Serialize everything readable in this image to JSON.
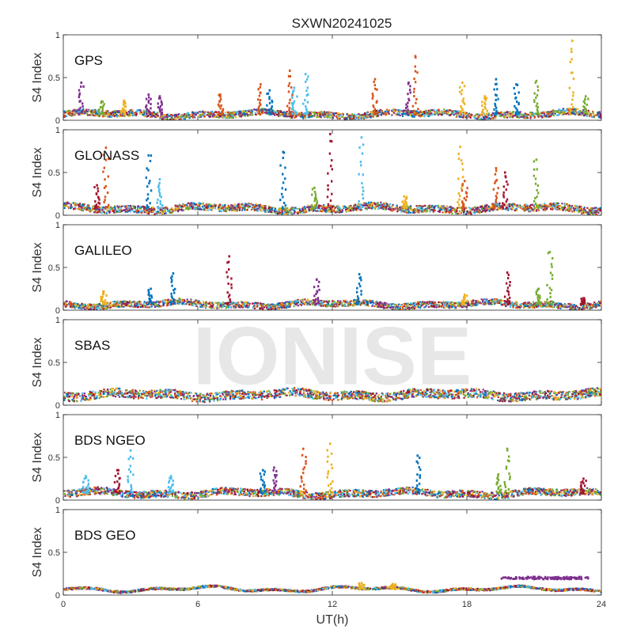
{
  "title": "SXWN20241025",
  "watermark": "IONISE",
  "x_axis": {
    "label": "UT(h)",
    "ticks": [
      "0",
      "6",
      "12",
      "18",
      "24"
    ],
    "range": [
      0,
      24
    ]
  },
  "y_axis": {
    "label": "S4 Index",
    "ticks": [
      "0",
      "0.5",
      "1"
    ],
    "range": [
      0,
      1
    ]
  },
  "palette": [
    "#0072BD",
    "#D95319",
    "#EDB120",
    "#7E2F8E",
    "#77AC30",
    "#4DBEEE",
    "#A2142F"
  ],
  "chart_data": [
    {
      "type": "scatter",
      "panel": "GPS",
      "ylim": [
        0,
        1
      ],
      "xlim": [
        0,
        24
      ],
      "baseline": {
        "level": 0.07,
        "noise": 0.035
      },
      "spikes": [
        {
          "x": 0.8,
          "peak": 0.44,
          "color": "#7E2F8E"
        },
        {
          "x": 1.7,
          "peak": 0.22,
          "color": "#77AC30"
        },
        {
          "x": 2.7,
          "peak": 0.23,
          "color": "#EDB120"
        },
        {
          "x": 3.8,
          "peak": 0.3,
          "color": "#7E2F8E"
        },
        {
          "x": 4.3,
          "peak": 0.28,
          "color": "#7E2F8E"
        },
        {
          "x": 7.0,
          "peak": 0.3,
          "color": "#D95319"
        },
        {
          "x": 8.8,
          "peak": 0.42,
          "color": "#D95319"
        },
        {
          "x": 9.2,
          "peak": 0.35,
          "color": "#0072BD"
        },
        {
          "x": 10.1,
          "peak": 0.58,
          "color": "#D95319"
        },
        {
          "x": 10.3,
          "peak": 0.38,
          "color": "#4DBEEE"
        },
        {
          "x": 10.8,
          "peak": 0.54,
          "color": "#4DBEEE"
        },
        {
          "x": 13.9,
          "peak": 0.48,
          "color": "#D95319"
        },
        {
          "x": 15.4,
          "peak": 0.44,
          "color": "#7E2F8E"
        },
        {
          "x": 15.7,
          "peak": 0.75,
          "color": "#D95319"
        },
        {
          "x": 17.8,
          "peak": 0.44,
          "color": "#EDB120"
        },
        {
          "x": 18.8,
          "peak": 0.28,
          "color": "#EDB120"
        },
        {
          "x": 19.3,
          "peak": 0.48,
          "color": "#0072BD"
        },
        {
          "x": 20.2,
          "peak": 0.42,
          "color": "#0072BD"
        },
        {
          "x": 21.1,
          "peak": 0.46,
          "color": "#77AC30"
        },
        {
          "x": 22.7,
          "peak": 0.93,
          "color": "#EDB120"
        },
        {
          "x": 23.3,
          "peak": 0.28,
          "color": "#77AC30"
        }
      ]
    },
    {
      "type": "scatter",
      "panel": "GLONASS",
      "ylim": [
        0,
        1
      ],
      "xlim": [
        0,
        24
      ],
      "baseline": {
        "level": 0.08,
        "noise": 0.04
      },
      "spikes": [
        {
          "x": 1.5,
          "peak": 0.35,
          "color": "#A2142F"
        },
        {
          "x": 1.9,
          "peak": 0.79,
          "color": "#D95319"
        },
        {
          "x": 3.8,
          "peak": 0.7,
          "color": "#0072BD"
        },
        {
          "x": 4.3,
          "peak": 0.42,
          "color": "#4DBEEE"
        },
        {
          "x": 9.8,
          "peak": 0.74,
          "color": "#0072BD"
        },
        {
          "x": 11.2,
          "peak": 0.32,
          "color": "#77AC30"
        },
        {
          "x": 11.9,
          "peak": 0.95,
          "color": "#A2142F"
        },
        {
          "x": 13.3,
          "peak": 0.91,
          "color": "#4DBEEE"
        },
        {
          "x": 15.2,
          "peak": 0.22,
          "color": "#EDB120"
        },
        {
          "x": 17.7,
          "peak": 0.8,
          "color": "#EDB120"
        },
        {
          "x": 17.9,
          "peak": 0.4,
          "color": "#D95319"
        },
        {
          "x": 19.3,
          "peak": 0.55,
          "color": "#D95319"
        },
        {
          "x": 19.7,
          "peak": 0.5,
          "color": "#A2142F"
        },
        {
          "x": 21.1,
          "peak": 0.65,
          "color": "#77AC30"
        }
      ]
    },
    {
      "type": "scatter",
      "panel": "GALILEO",
      "ylim": [
        0,
        1
      ],
      "xlim": [
        0,
        24
      ],
      "baseline": {
        "level": 0.07,
        "noise": 0.035
      },
      "spikes": [
        {
          "x": 1.8,
          "peak": 0.22,
          "color": "#EDB120"
        },
        {
          "x": 3.9,
          "peak": 0.25,
          "color": "#0072BD"
        },
        {
          "x": 4.9,
          "peak": 0.43,
          "color": "#0072BD"
        },
        {
          "x": 7.4,
          "peak": 0.63,
          "color": "#A2142F"
        },
        {
          "x": 11.3,
          "peak": 0.36,
          "color": "#7E2F8E"
        },
        {
          "x": 13.2,
          "peak": 0.42,
          "color": "#0072BD"
        },
        {
          "x": 17.9,
          "peak": 0.18,
          "color": "#EDB120"
        },
        {
          "x": 19.8,
          "peak": 0.44,
          "color": "#A2142F"
        },
        {
          "x": 21.2,
          "peak": 0.25,
          "color": "#77AC30"
        },
        {
          "x": 21.7,
          "peak": 0.68,
          "color": "#77AC30"
        },
        {
          "x": 23.2,
          "peak": 0.14,
          "color": "#A2142F"
        }
      ]
    },
    {
      "type": "scatter",
      "panel": "SBAS",
      "ylim": [
        0,
        1
      ],
      "xlim": [
        0,
        24
      ],
      "baseline": {
        "level": 0.12,
        "noise": 0.05
      },
      "spikes": []
    },
    {
      "type": "scatter",
      "panel": "BDS NGEO",
      "ylim": [
        0,
        1
      ],
      "xlim": [
        0,
        24
      ],
      "baseline": {
        "level": 0.08,
        "noise": 0.04
      },
      "spikes": [
        {
          "x": 1.0,
          "peak": 0.28,
          "color": "#4DBEEE"
        },
        {
          "x": 2.4,
          "peak": 0.35,
          "color": "#A2142F"
        },
        {
          "x": 3.0,
          "peak": 0.58,
          "color": "#4DBEEE"
        },
        {
          "x": 4.8,
          "peak": 0.28,
          "color": "#4DBEEE"
        },
        {
          "x": 8.9,
          "peak": 0.35,
          "color": "#0072BD"
        },
        {
          "x": 9.4,
          "peak": 0.38,
          "color": "#7E2F8E"
        },
        {
          "x": 10.7,
          "peak": 0.6,
          "color": "#D95319"
        },
        {
          "x": 11.9,
          "peak": 0.66,
          "color": "#EDB120"
        },
        {
          "x": 15.8,
          "peak": 0.52,
          "color": "#0072BD"
        },
        {
          "x": 19.4,
          "peak": 0.3,
          "color": "#77AC30"
        },
        {
          "x": 19.8,
          "peak": 0.6,
          "color": "#77AC30"
        },
        {
          "x": 23.2,
          "peak": 0.25,
          "color": "#A2142F"
        }
      ]
    },
    {
      "type": "scatter",
      "panel": "BDS GEO",
      "ylim": [
        0,
        1
      ],
      "xlim": [
        0,
        24
      ],
      "baseline": {
        "level": 0.07,
        "noise": 0.012
      },
      "spikes": [
        {
          "x": 13.3,
          "peak": 0.14,
          "color": "#EDB120"
        },
        {
          "x": 14.7,
          "peak": 0.13,
          "color": "#EDB120"
        }
      ],
      "plateau": {
        "x_start": 19.5,
        "x_end": 23.5,
        "level": 0.2,
        "color": "#7E2F8E"
      }
    }
  ]
}
